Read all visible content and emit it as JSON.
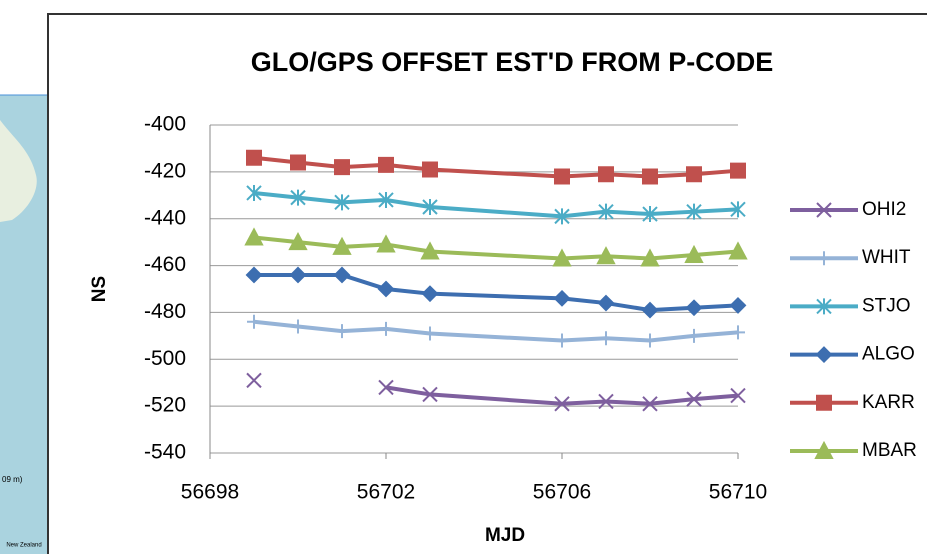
{
  "background": {
    "map_labels": [
      "09 m)",
      "New Zealand"
    ]
  },
  "chart_data": {
    "type": "line",
    "title": "GLO/GPS  OFFSET EST'D FROM P-CODE",
    "x_label": "MJD",
    "y_label": "NS",
    "x": [
      56699,
      56700,
      56701,
      56702,
      56703,
      56706,
      56707,
      56708,
      56709,
      56710
    ],
    "xlim": [
      56698,
      56710
    ],
    "xticks": [
      56698,
      56702,
      56706,
      56710
    ],
    "ylim": [
      -540,
      -400
    ],
    "yticks": [
      -540,
      -520,
      -500,
      -480,
      -460,
      -440,
      -420,
      -400
    ],
    "grid": true,
    "legend": "right",
    "series": [
      {
        "name": "OHI2",
        "color": "#7e5f9e",
        "marker": "x",
        "values": [
          -509,
          null,
          null,
          -512,
          -515,
          -519,
          -518,
          -519,
          -517,
          -515.5
        ]
      },
      {
        "name": "WHIT",
        "color": "#95b3d7",
        "marker": "plus",
        "values": [
          -484,
          -486,
          -488,
          -487,
          -489,
          -492,
          -491,
          -492,
          -490,
          -488.5
        ]
      },
      {
        "name": "STJO",
        "color": "#4bacc6",
        "marker": "asterisk",
        "values": [
          -429,
          -431,
          -433,
          -432,
          -435,
          -439,
          -437,
          -438,
          -437,
          -436
        ]
      },
      {
        "name": "ALGO",
        "color": "#3d6eb0",
        "marker": "diamond",
        "values": [
          -464,
          -464,
          -464,
          -470,
          -472,
          -474,
          -476,
          -479,
          -478,
          -477
        ]
      },
      {
        "name": "KARR",
        "color": "#c0504d",
        "marker": "square",
        "values": [
          -414,
          -416,
          -418,
          -417,
          -419,
          -422,
          -421,
          -422,
          -421,
          -419.5
        ]
      },
      {
        "name": "MBAR",
        "color": "#9bbb59",
        "marker": "triangle",
        "values": [
          -448,
          -450,
          -452,
          -451,
          -454,
          -457,
          -456,
          -457,
          -455.5,
          -454
        ]
      }
    ]
  }
}
